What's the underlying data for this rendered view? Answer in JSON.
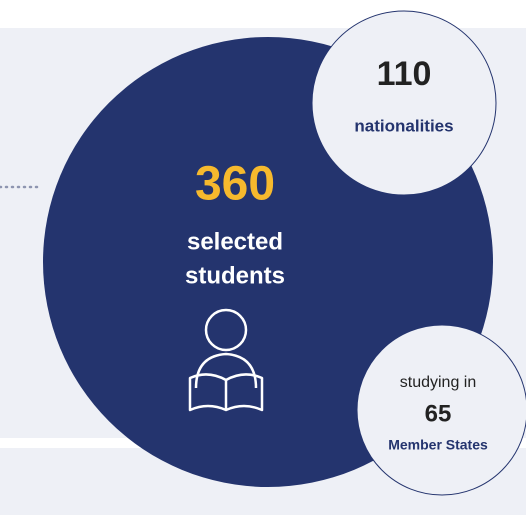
{
  "main": {
    "value": 360,
    "label_lines": [
      "selected",
      "students"
    ]
  },
  "top": {
    "value": 110,
    "label": "nationalities"
  },
  "bottom": {
    "prefix": "studying in",
    "value": 65,
    "label": "Member States"
  }
}
